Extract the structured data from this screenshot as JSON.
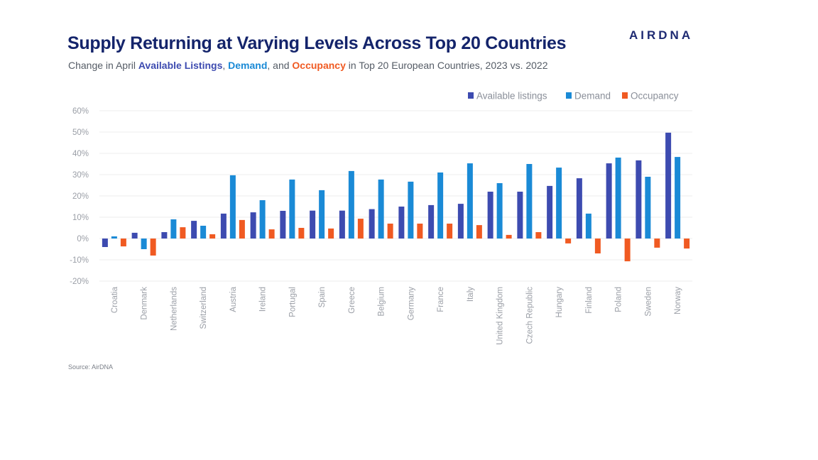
{
  "header": {
    "title": "Supply Returning at Varying Levels Across Top 20 Countries",
    "subtitle_prefix": "Change in April ",
    "subtitle_al": "Available Listings",
    "subtitle_sep1": ", ",
    "subtitle_dm": "Demand",
    "subtitle_sep2": ", and ",
    "subtitle_oc": "Occupancy",
    "subtitle_suffix": " in Top 20 European Countries, 2023 vs. 2022",
    "logo": "AIRDNA"
  },
  "footer": {
    "source": "Source: AirDNA"
  },
  "chart_data": {
    "type": "bar",
    "title": "Supply Returning at Varying Levels Across Top 20 Countries",
    "xlabel": "",
    "ylabel": "",
    "ylim": [
      -20,
      60
    ],
    "yticks": [
      60,
      50,
      40,
      30,
      20,
      10,
      0,
      -10,
      -20
    ],
    "ytick_labels": [
      "60%",
      "50%",
      "40%",
      "30%",
      "20%",
      "10%",
      "0%",
      "-10%",
      "-20%"
    ],
    "grid": true,
    "legend_position": "top-right",
    "categories": [
      "Croatia",
      "Denmark",
      "Netherlands",
      "Switzerland",
      "Austria",
      "Ireland",
      "Portugal",
      "Spain",
      "Greece",
      "Belgium",
      "Germany",
      "France",
      "Italy",
      "United Kingdom",
      "Czech Republic",
      "Hungary",
      "Finland",
      "Poland",
      "Sweden",
      "Norway"
    ],
    "series": [
      {
        "name": "Available listings",
        "color": "#3d4bb0",
        "values": [
          -4,
          2.7,
          3,
          8.3,
          11.7,
          12.3,
          13,
          13.1,
          13.1,
          13.8,
          15,
          15.7,
          16.3,
          22,
          22,
          24.7,
          28.3,
          35.3,
          36.7,
          49.7
        ]
      },
      {
        "name": "Demand",
        "color": "#1a8ad6",
        "values": [
          1,
          -5,
          9,
          6,
          29.7,
          18,
          27.7,
          22.7,
          31.7,
          27.7,
          26.7,
          31,
          35.3,
          26,
          35,
          33.3,
          11.7,
          38,
          29,
          38.3
        ]
      },
      {
        "name": "Occupancy",
        "color": "#f05a22",
        "values": [
          -3.7,
          -8,
          5.3,
          2,
          8.7,
          4.3,
          5,
          4.7,
          9.3,
          7,
          7,
          7,
          6.3,
          1.7,
          3,
          -2.3,
          -7,
          -10.7,
          -4.3,
          -4.7
        ]
      }
    ]
  }
}
